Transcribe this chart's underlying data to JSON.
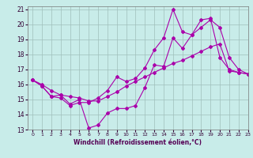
{
  "title": "",
  "xlabel": "Windchill (Refroidissement éolien,°C)",
  "ylabel": "",
  "xlim": [
    -0.5,
    23
  ],
  "ylim": [
    13,
    21.2
  ],
  "yticks": [
    13,
    14,
    15,
    16,
    17,
    18,
    19,
    20,
    21
  ],
  "xticks": [
    0,
    1,
    2,
    3,
    4,
    5,
    6,
    7,
    8,
    9,
    10,
    11,
    12,
    13,
    14,
    15,
    16,
    17,
    18,
    19,
    20,
    21,
    22,
    23
  ],
  "bg_color": "#c8ece9",
  "grid_color": "#9fbfbb",
  "line_color": "#aa00aa",
  "line1_x": [
    0,
    1,
    2,
    3,
    4,
    5,
    6,
    7,
    8,
    9,
    10,
    11,
    12,
    13,
    14,
    15,
    16,
    17,
    18,
    19,
    20,
    21,
    22,
    23
  ],
  "line1_y": [
    16.3,
    15.9,
    15.2,
    15.3,
    14.7,
    15.0,
    13.1,
    13.3,
    14.1,
    14.4,
    14.4,
    14.6,
    15.8,
    17.3,
    17.2,
    19.1,
    18.4,
    19.3,
    19.8,
    20.3,
    19.8,
    17.8,
    17.0,
    16.7
  ],
  "line2_x": [
    0,
    1,
    2,
    3,
    4,
    5,
    6,
    7,
    8,
    9,
    10,
    11,
    12,
    13,
    14,
    15,
    16,
    17,
    18,
    19,
    20,
    21,
    22,
    23
  ],
  "line2_y": [
    16.3,
    16.0,
    15.6,
    15.3,
    15.2,
    15.1,
    14.9,
    14.9,
    15.2,
    15.5,
    15.9,
    16.2,
    16.5,
    16.8,
    17.1,
    17.4,
    17.6,
    17.9,
    18.2,
    18.5,
    18.7,
    16.9,
    16.8,
    16.7
  ],
  "line3_x": [
    0,
    1,
    2,
    3,
    4,
    5,
    6,
    7,
    8,
    9,
    10,
    11,
    12,
    13,
    14,
    15,
    16,
    17,
    18,
    19,
    20,
    21,
    22,
    23
  ],
  "line3_y": [
    16.3,
    15.9,
    15.2,
    15.1,
    14.6,
    14.8,
    14.8,
    15.1,
    15.6,
    16.5,
    16.2,
    16.4,
    17.1,
    18.3,
    19.1,
    21.0,
    19.5,
    19.3,
    20.3,
    20.4,
    17.8,
    17.0,
    16.8,
    16.7
  ],
  "xlabel_color": "#550055",
  "tick_color": "#330033",
  "tick_fontsize": 5.5,
  "xlabel_fontsize": 5.5
}
